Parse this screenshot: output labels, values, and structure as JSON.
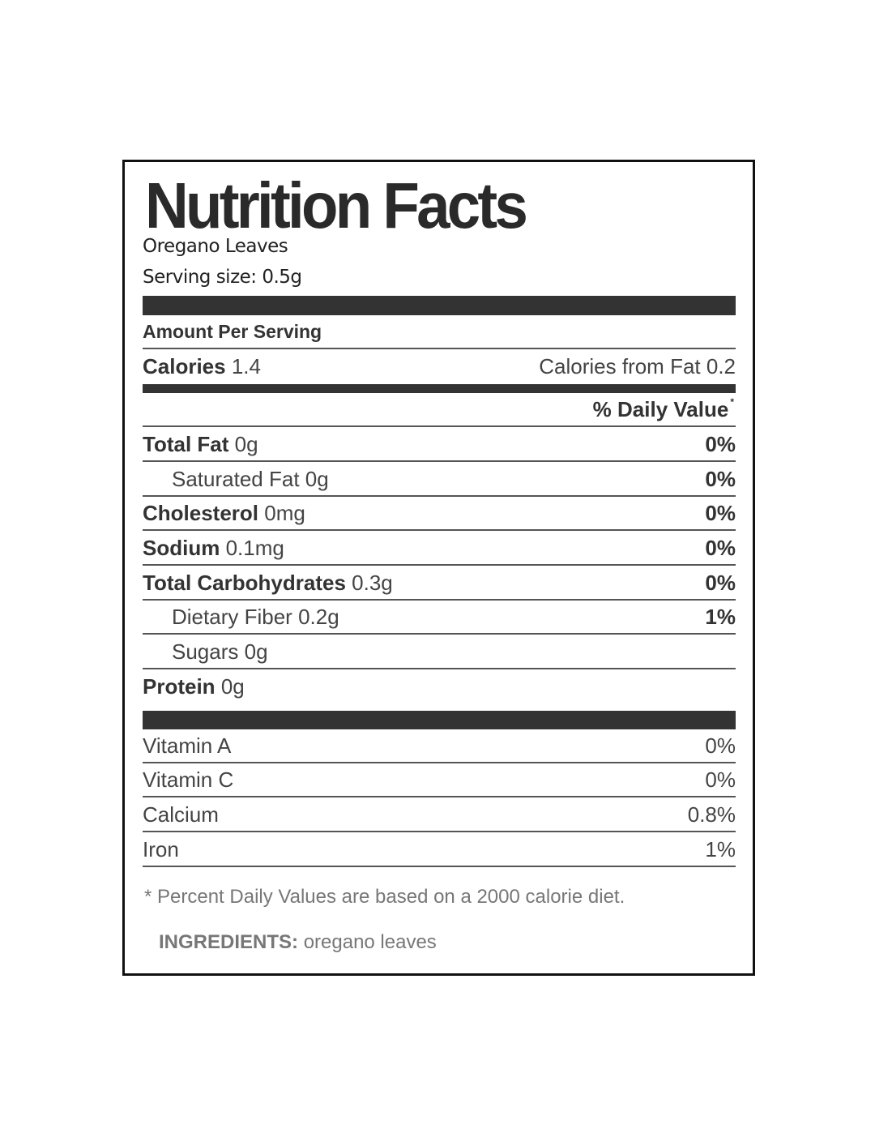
{
  "title": "Nutrition Facts",
  "product_name": "Oregano Leaves",
  "serving_size": "Serving size: 0.5g",
  "amount_per_serving": "Amount Per Serving",
  "calories": {
    "label": "Calories",
    "value": "1.4",
    "from_fat": "Calories from Fat 0.2"
  },
  "daily_value_header": "% Daily Value",
  "daily_value_mark": "*",
  "nutrients": [
    {
      "label": "Total Fat",
      "amount": "0g",
      "dv": "0%"
    },
    {
      "label": "Saturated Fat",
      "amount": "0g",
      "dv": "0%"
    },
    {
      "label": "Cholesterol",
      "amount": "0mg",
      "dv": "0%"
    },
    {
      "label": "Sodium",
      "amount": "0.1mg",
      "dv": "0%"
    },
    {
      "label": "Total Carbohydrates",
      "amount": "0.3g",
      "dv": "0%"
    },
    {
      "label": "Dietary Fiber",
      "amount": "0.2g",
      "dv": "1%"
    },
    {
      "label": "Sugars",
      "amount": "0g",
      "dv": ""
    },
    {
      "label": "Protein",
      "amount": "0g",
      "dv": ""
    }
  ],
  "vitamins": [
    {
      "label": "Vitamin A",
      "dv": "0%"
    },
    {
      "label": "Vitamin C",
      "dv": "0%"
    },
    {
      "label": "Calcium",
      "dv": "0.8%"
    },
    {
      "label": "Iron",
      "dv": "1%"
    }
  ],
  "footnote": "* Percent Daily Values are based on a 2000 calorie diet.",
  "ingredients": {
    "label": "INGREDIENTS:",
    "value": "oregano leaves"
  }
}
